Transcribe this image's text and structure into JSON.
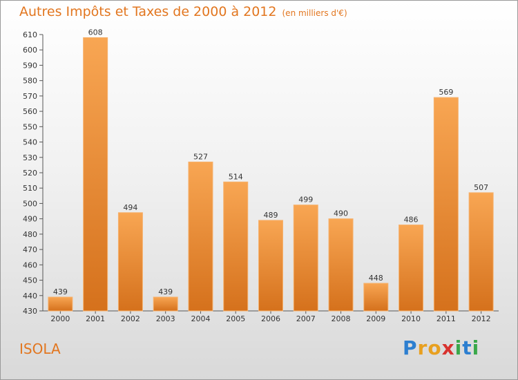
{
  "title": "Autres Impôts et Taxes de 2000 à 2012",
  "unit": "(en milliers d'€)",
  "place": "ISOLA",
  "logo": {
    "letters": [
      "P",
      "r",
      "o",
      "x",
      "i",
      "t",
      "i"
    ]
  },
  "colors": {
    "bar_light": "#f7a24d",
    "bar_dark": "#d5741e",
    "title": "#e2761f"
  },
  "chart_data": {
    "type": "bar",
    "categories": [
      "2000",
      "2001",
      "2002",
      "2003",
      "2004",
      "2005",
      "2006",
      "2007",
      "2008",
      "2009",
      "2010",
      "2011",
      "2012"
    ],
    "values": [
      439,
      608,
      494,
      439,
      527,
      514,
      489,
      499,
      490,
      448,
      486,
      569,
      507
    ],
    "ylim": [
      430,
      610
    ],
    "ytick_step": 10,
    "grid": false
  }
}
